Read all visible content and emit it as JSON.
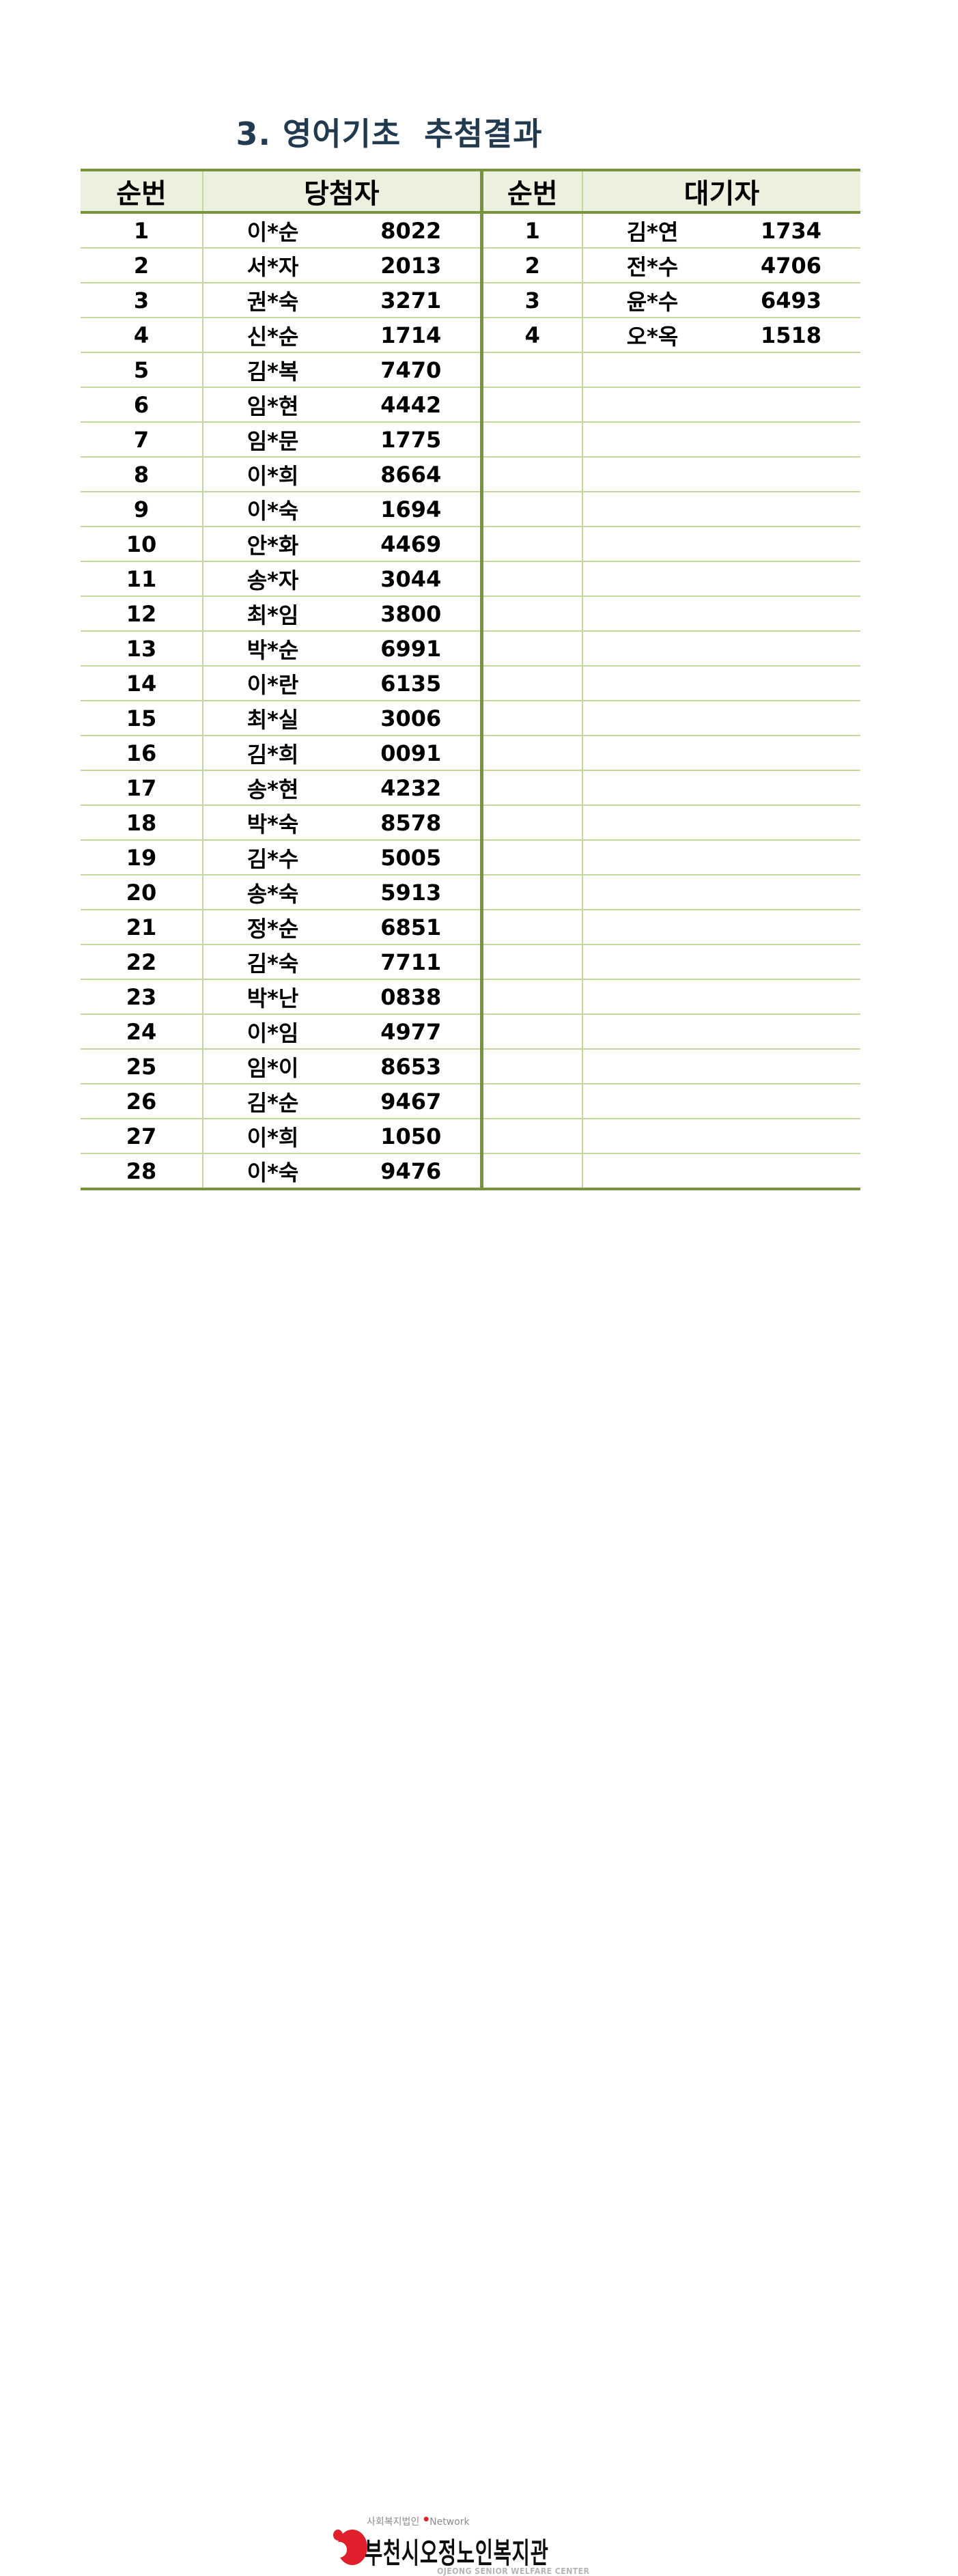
{
  "title": "3. 영어기초  추첨결과",
  "table": {
    "headers": {
      "no_left": "순번",
      "winners": "당첨자",
      "no_right": "순번",
      "waitlist": "대기자"
    },
    "winners": [
      {
        "no": "1",
        "name": "이*순",
        "num": "8022"
      },
      {
        "no": "2",
        "name": "서*자",
        "num": "2013"
      },
      {
        "no": "3",
        "name": "권*숙",
        "num": "3271"
      },
      {
        "no": "4",
        "name": "신*순",
        "num": "1714"
      },
      {
        "no": "5",
        "name": "김*복",
        "num": "7470"
      },
      {
        "no": "6",
        "name": "임*현",
        "num": "4442"
      },
      {
        "no": "7",
        "name": "임*문",
        "num": "1775"
      },
      {
        "no": "8",
        "name": "이*희",
        "num": "8664"
      },
      {
        "no": "9",
        "name": "이*숙",
        "num": "1694"
      },
      {
        "no": "10",
        "name": "안*화",
        "num": "4469"
      },
      {
        "no": "11",
        "name": "송*자",
        "num": "3044"
      },
      {
        "no": "12",
        "name": "최*임",
        "num": "3800"
      },
      {
        "no": "13",
        "name": "박*순",
        "num": "6991"
      },
      {
        "no": "14",
        "name": "이*란",
        "num": "6135"
      },
      {
        "no": "15",
        "name": "최*실",
        "num": "3006"
      },
      {
        "no": "16",
        "name": "김*희",
        "num": "0091"
      },
      {
        "no": "17",
        "name": "송*현",
        "num": "4232"
      },
      {
        "no": "18",
        "name": "박*숙",
        "num": "8578"
      },
      {
        "no": "19",
        "name": "김*수",
        "num": "5005"
      },
      {
        "no": "20",
        "name": "송*숙",
        "num": "5913"
      },
      {
        "no": "21",
        "name": "정*순",
        "num": "6851"
      },
      {
        "no": "22",
        "name": "김*숙",
        "num": "7711"
      },
      {
        "no": "23",
        "name": "박*난",
        "num": "0838"
      },
      {
        "no": "24",
        "name": "이*임",
        "num": "4977"
      },
      {
        "no": "25",
        "name": "임*이",
        "num": "8653"
      },
      {
        "no": "26",
        "name": "김*순",
        "num": "9467"
      },
      {
        "no": "27",
        "name": "이*희",
        "num": "1050"
      },
      {
        "no": "28",
        "name": "이*숙",
        "num": "9476"
      }
    ],
    "waitlist": [
      {
        "no": "1",
        "name": "김*연",
        "num": "1734"
      },
      {
        "no": "2",
        "name": "전*수",
        "num": "4706"
      },
      {
        "no": "3",
        "name": "윤*수",
        "num": "6493"
      },
      {
        "no": "4",
        "name": "오*옥",
        "num": "1518"
      }
    ]
  },
  "footer": {
    "org_small": "사회복지법인",
    "network": "Network",
    "org_name": "부천시오정노인복지관",
    "org_en": "OJEONG SENIOR WELFARE CENTER"
  },
  "colors": {
    "title_text": "#223a4f",
    "header_bg": "#ebf1de",
    "border_thick": "#77933c",
    "border_thin": "#c4d79b",
    "logo_red": "#e01f2d",
    "footer_gray": "#8c8c8c",
    "footer_en_gray": "#b5b5b5"
  }
}
